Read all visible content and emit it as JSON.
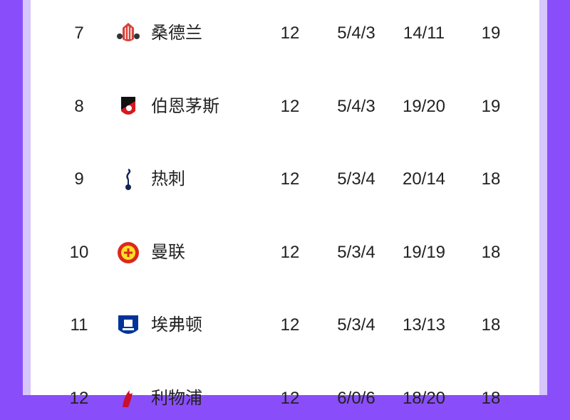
{
  "colors": {
    "background": "#8a4dfa",
    "accent_strip": "#d6c6fb",
    "card": "#ffffff"
  },
  "rows": [
    {
      "rank": "7",
      "team": "桑德兰",
      "icon": "sunderland-crest-icon",
      "played": "12",
      "record": "5/4/3",
      "goals": "14/11",
      "points": "19"
    },
    {
      "rank": "8",
      "team": "伯恩茅斯",
      "icon": "bournemouth-crest-icon",
      "played": "12",
      "record": "5/4/3",
      "goals": "19/20",
      "points": "19"
    },
    {
      "rank": "9",
      "team": "热刺",
      "icon": "tottenham-crest-icon",
      "played": "12",
      "record": "5/3/4",
      "goals": "20/14",
      "points": "18"
    },
    {
      "rank": "10",
      "team": "曼联",
      "icon": "manchester-united-crest-icon",
      "played": "12",
      "record": "5/3/4",
      "goals": "19/19",
      "points": "18"
    },
    {
      "rank": "11",
      "team": "埃弗顿",
      "icon": "everton-crest-icon",
      "played": "12",
      "record": "5/3/4",
      "goals": "13/13",
      "points": "18"
    },
    {
      "rank": "12",
      "team": "利物浦",
      "icon": "liverpool-crest-icon",
      "played": "12",
      "record": "6/0/6",
      "goals": "18/20",
      "points": "18"
    }
  ]
}
